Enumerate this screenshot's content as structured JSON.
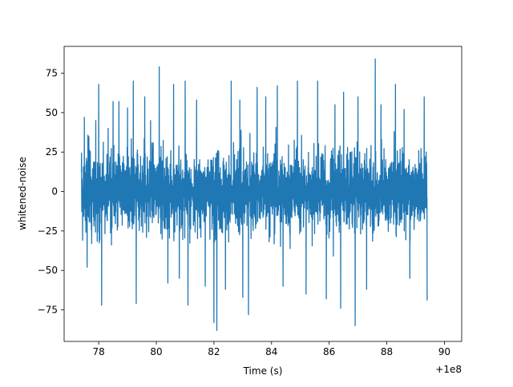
{
  "chart_data": {
    "type": "line",
    "title": "",
    "xlabel": "Time (s)",
    "ylabel": "whitened-noise",
    "x_offset_label": "+1e8",
    "xlim": [
      76.8,
      90.6
    ],
    "ylim": [
      -95,
      92
    ],
    "x_ticks": [
      {
        "value": 78,
        "label": "78"
      },
      {
        "value": 80,
        "label": "80"
      },
      {
        "value": 82,
        "label": "82"
      },
      {
        "value": 84,
        "label": "84"
      },
      {
        "value": 86,
        "label": "86"
      },
      {
        "value": 88,
        "label": "88"
      },
      {
        "value": 90,
        "label": "90"
      }
    ],
    "y_ticks": [
      {
        "value": -75,
        "label": "−75"
      },
      {
        "value": -50,
        "label": "−50"
      },
      {
        "value": -25,
        "label": "−25"
      },
      {
        "value": 0,
        "label": "0"
      },
      {
        "value": 25,
        "label": "25"
      },
      {
        "value": 50,
        "label": "50"
      },
      {
        "value": 75,
        "label": "75"
      }
    ],
    "grid": false,
    "series": [
      {
        "color": "#1f77b4",
        "x_range": [
          77.4,
          89.4
        ],
        "typical_amplitude": [
          -45,
          45
        ],
        "spikes": [
          {
            "x": 77.5,
            "y": 47
          },
          {
            "x": 77.6,
            "y": -48
          },
          {
            "x": 77.9,
            "y": 45
          },
          {
            "x": 78.0,
            "y": 68
          },
          {
            "x": 78.1,
            "y": -72
          },
          {
            "x": 78.5,
            "y": 57
          },
          {
            "x": 78.7,
            "y": 57
          },
          {
            "x": 79.0,
            "y": 53
          },
          {
            "x": 79.2,
            "y": 70
          },
          {
            "x": 79.3,
            "y": -71
          },
          {
            "x": 79.6,
            "y": 60
          },
          {
            "x": 79.8,
            "y": 45
          },
          {
            "x": 80.1,
            "y": 79
          },
          {
            "x": 80.4,
            "y": -58
          },
          {
            "x": 80.6,
            "y": 68
          },
          {
            "x": 80.8,
            "y": -55
          },
          {
            "x": 81.0,
            "y": 70
          },
          {
            "x": 81.1,
            "y": -72
          },
          {
            "x": 81.4,
            "y": 58
          },
          {
            "x": 81.7,
            "y": -60
          },
          {
            "x": 82.0,
            "y": 68
          },
          {
            "x": 82.1,
            "y": -88
          },
          {
            "x": 82.0,
            "y": -83
          },
          {
            "x": 82.4,
            "y": -62
          },
          {
            "x": 82.6,
            "y": 70
          },
          {
            "x": 82.9,
            "y": 58
          },
          {
            "x": 83.0,
            "y": -67
          },
          {
            "x": 83.2,
            "y": -78
          },
          {
            "x": 83.5,
            "y": 66
          },
          {
            "x": 83.8,
            "y": 60
          },
          {
            "x": 84.2,
            "y": 67
          },
          {
            "x": 84.4,
            "y": -60
          },
          {
            "x": 84.9,
            "y": 70
          },
          {
            "x": 85.2,
            "y": -65
          },
          {
            "x": 85.6,
            "y": 70
          },
          {
            "x": 85.9,
            "y": -68
          },
          {
            "x": 86.2,
            "y": 55
          },
          {
            "x": 86.4,
            "y": -74
          },
          {
            "x": 86.5,
            "y": 63
          },
          {
            "x": 86.9,
            "y": -85
          },
          {
            "x": 87.0,
            "y": 60
          },
          {
            "x": 87.3,
            "y": -62
          },
          {
            "x": 87.6,
            "y": 84
          },
          {
            "x": 87.8,
            "y": 55
          },
          {
            "x": 88.3,
            "y": 68
          },
          {
            "x": 88.6,
            "y": 52
          },
          {
            "x": 88.8,
            "y": -55
          },
          {
            "x": 89.3,
            "y": 60
          },
          {
            "x": 89.4,
            "y": -69
          }
        ]
      }
    ]
  }
}
